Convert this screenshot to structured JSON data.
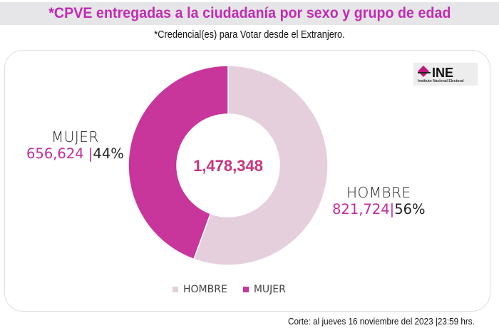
{
  "header": {
    "title": "*CPVE entregadas a la ciudadanía por sexo y grupo de edad",
    "subtitle": "*Credencial(es) para Votar desde el Extranjero."
  },
  "logo": {
    "text": "INE",
    "subtext": "Instituto Nacional Electoral",
    "icon": "ine-diamond-logo-icon"
  },
  "colors": {
    "hombre": "#e6cfdd",
    "mujer": "#c8359b",
    "accent": "#c22bb3",
    "total": "#c8347f"
  },
  "chart_data": {
    "type": "pie",
    "variant": "donut",
    "title": "*CPVE entregadas a la ciudadanía por sexo y grupo de edad",
    "subtitle": "*Credencial(es) para Votar desde el Extranjero.",
    "total_label": "1,478,348",
    "total": 1478348,
    "categories": [
      "HOMBRE",
      "MUJER"
    ],
    "values": [
      821724,
      656624
    ],
    "percent_labels": [
      "56%",
      "44%"
    ],
    "value_labels": [
      "821,724",
      "656,624"
    ],
    "legend": [
      "HOMBRE",
      "MUJER"
    ],
    "legend_position": "bottom",
    "start_angle_deg": 0,
    "direction": "clockwise"
  },
  "labels": {
    "mujer": {
      "name": "MUJER",
      "value": "656,624",
      "sep": "|",
      "pct": "44%"
    },
    "hombre": {
      "name": "HOMBRE",
      "value": "821,724",
      "sep": "|",
      "pct": "56%"
    }
  },
  "footer": {
    "text": "Corte: al jueves 16 noviembre del 2023 |23:59 hrs."
  }
}
